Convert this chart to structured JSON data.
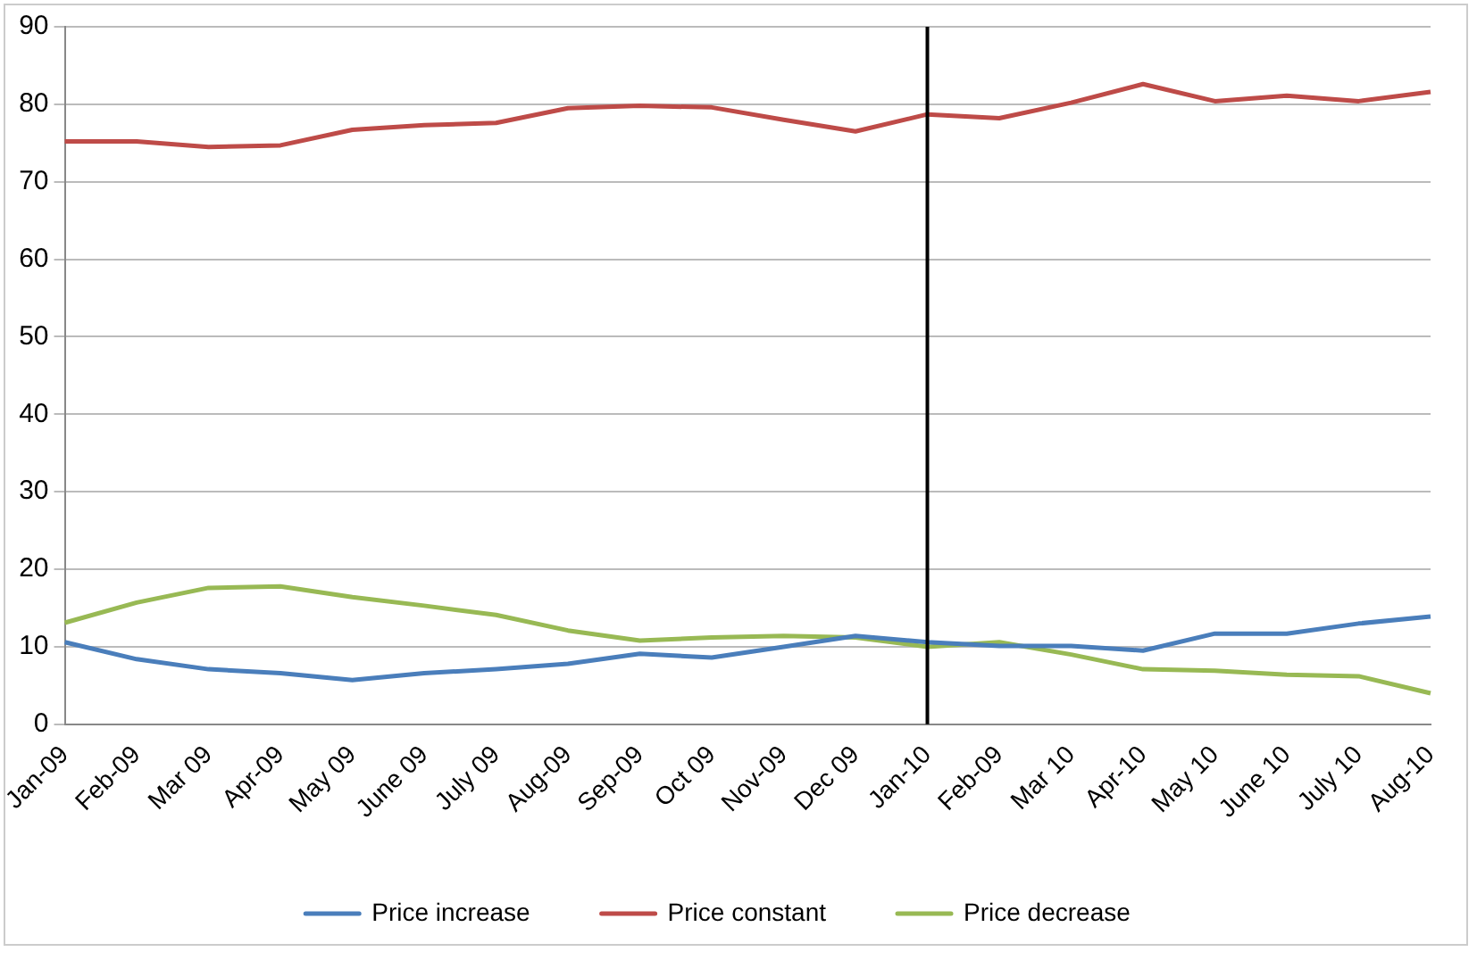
{
  "chart_data": {
    "type": "line",
    "categories": [
      "Jan-09",
      "Feb-09",
      "Mar 09",
      "Apr-09",
      "May 09",
      "June 09",
      "July 09",
      "Aug-09",
      "Sep-09",
      "Oct 09",
      "Nov-09",
      "Dec 09",
      "Jan-10",
      "Feb-09",
      "Mar 10",
      "Apr-10",
      "May 10",
      "June 10",
      "July 10",
      "Aug-10"
    ],
    "series": [
      {
        "name": "Price increase",
        "color": "#4a7ebb",
        "values": [
          10.6,
          8.4,
          7.1,
          6.6,
          5.7,
          6.6,
          7.1,
          7.8,
          9.1,
          8.6,
          10,
          11.4,
          10.6,
          10.1,
          10.1,
          9.5,
          11.7,
          11.7,
          13,
          13.9
        ]
      },
      {
        "name": "Price constant",
        "color": "#be4b48",
        "values": [
          75.2,
          75.2,
          74.5,
          74.7,
          76.7,
          77.3,
          77.6,
          79.5,
          79.8,
          79.6,
          78,
          76.5,
          78.7,
          78.2,
          80.2,
          82.6,
          80.4,
          81.1,
          80.4,
          81.6
        ]
      },
      {
        "name": "Price decrease",
        "color": "#98b954",
        "values": [
          13.1,
          15.7,
          17.6,
          17.8,
          16.4,
          15.3,
          14.1,
          12.1,
          10.8,
          11.2,
          11.4,
          11.2,
          10,
          10.6,
          9,
          7.1,
          6.9,
          6.4,
          6.2,
          4
        ]
      }
    ],
    "ylim": [
      0,
      90
    ],
    "yticks": [
      0,
      10,
      20,
      30,
      40,
      50,
      60,
      70,
      80,
      90
    ],
    "grid": "y",
    "legend": "bottom",
    "marker": "none",
    "line_style": "solid",
    "ref_lines": [
      {
        "axis": "x",
        "value": "Jan-10",
        "color": "#000000"
      }
    ]
  }
}
